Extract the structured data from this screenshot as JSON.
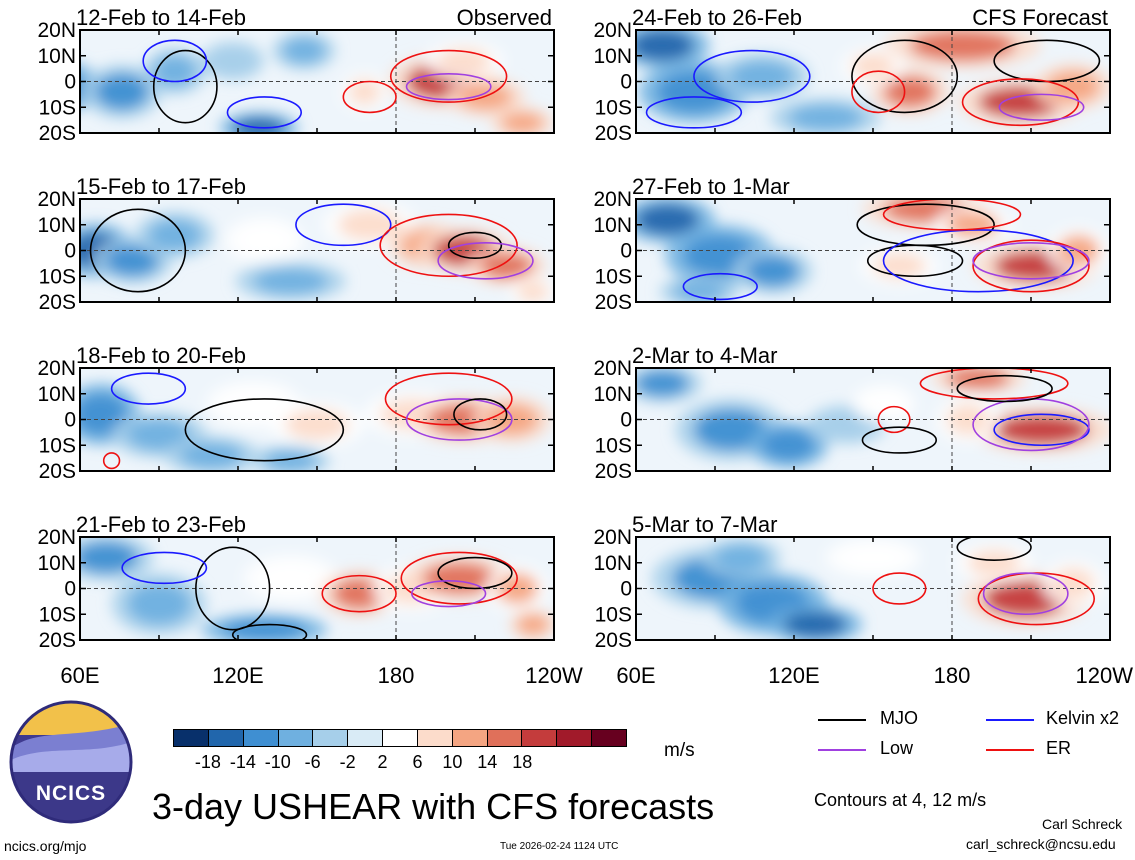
{
  "chart_data": {
    "type": "heatmap",
    "title": "3-day USHEAR with CFS forecasts",
    "variable": "USHEAR",
    "units": "m/s",
    "contour_note": "Contours at 4, 12 m/s",
    "panel_headers": {
      "observed": "Observed",
      "forecast": "CFS Forecast"
    },
    "x_ticks": [
      "60E",
      "120E",
      "180",
      "120W",
      "60E",
      "120E",
      "180",
      "120W"
    ],
    "y_ticks": [
      "20N",
      "10N",
      "0",
      "10S",
      "20S"
    ],
    "colorbar": {
      "labels": [
        "-18",
        "-14",
        "-10",
        "-6",
        "-2",
        "2",
        "6",
        "10",
        "14",
        "18"
      ],
      "colors": [
        "#08306b",
        "#2166ac",
        "#3f8fd2",
        "#6fb0e0",
        "#a6cfea",
        "#d9ebf6",
        "#ffffff",
        "#fcdccb",
        "#f4a582",
        "#e0705a",
        "#c43c3c",
        "#a11a2a",
        "#67001f"
      ]
    },
    "legend": [
      {
        "name": "MJO",
        "color": "#000000"
      },
      {
        "name": "Kelvin x2",
        "color": "#1a1aff"
      },
      {
        "name": "Low",
        "color": "#a040e0"
      },
      {
        "name": "ER",
        "color": "#ee1111"
      }
    ],
    "panels": [
      {
        "label": "12-Feb to 14-Feb",
        "source": "Observed",
        "column": 0,
        "row": 0,
        "blobs": [
          [
            50,
            -2,
            12,
            7,
            -14
          ],
          [
            76,
            -4,
            10,
            7,
            -12
          ],
          [
            96,
            4,
            8,
            6,
            -10
          ],
          [
            128,
            -18,
            10,
            4,
            -16
          ],
          [
            145,
            12,
            8,
            5,
            -8
          ],
          [
            168,
            -4,
            6,
            5,
            8
          ],
          [
            198,
            0,
            14,
            7,
            18
          ],
          [
            214,
            -6,
            10,
            5,
            12
          ],
          [
            206,
            8,
            10,
            5,
            6
          ],
          [
            228,
            -16,
            8,
            4,
            12
          ],
          [
            118,
            8,
            8,
            5,
            -6
          ]
        ],
        "contours": [
          {
            "type": "MJO",
            "lon": 100,
            "lat": -2,
            "rx": 12,
            "ry": 14
          },
          {
            "type": "Kelvin x2",
            "lon": 96,
            "lat": 8,
            "rx": 12,
            "ry": 8
          },
          {
            "type": "Kelvin x2",
            "lon": 130,
            "lat": -12,
            "rx": 14,
            "ry": 6
          },
          {
            "type": "ER",
            "lon": 200,
            "lat": 2,
            "rx": 22,
            "ry": 10
          },
          {
            "type": "ER",
            "lon": 170,
            "lat": -6,
            "rx": 10,
            "ry": 6
          },
          {
            "type": "Low",
            "lon": 200,
            "lat": -2,
            "rx": 16,
            "ry": 5
          }
        ]
      },
      {
        "label": "15-Feb to 17-Feb",
        "source": "Observed",
        "column": 0,
        "row": 1,
        "blobs": [
          [
            66,
            0,
            10,
            7,
            -16
          ],
          [
            80,
            -4,
            10,
            6,
            -12
          ],
          [
            96,
            6,
            10,
            6,
            -8
          ],
          [
            140,
            -12,
            14,
            5,
            -10
          ],
          [
            130,
            4,
            10,
            6,
            4
          ],
          [
            170,
            10,
            12,
            6,
            6
          ],
          [
            192,
            2,
            10,
            6,
            12
          ],
          [
            206,
            0,
            12,
            6,
            18
          ],
          [
            222,
            -6,
            10,
            5,
            14
          ],
          [
            232,
            -16,
            6,
            4,
            8
          ]
        ],
        "contours": [
          {
            "type": "MJO",
            "lon": 82,
            "lat": 0,
            "rx": 18,
            "ry": 16
          },
          {
            "type": "Kelvin x2",
            "lon": 160,
            "lat": 10,
            "rx": 18,
            "ry": 8
          },
          {
            "type": "ER",
            "lon": 200,
            "lat": 2,
            "rx": 26,
            "ry": 12
          },
          {
            "type": "MJO",
            "lon": 210,
            "lat": 2,
            "rx": 10,
            "ry": 5
          },
          {
            "type": "Low",
            "lon": 214,
            "lat": -4,
            "rx": 18,
            "ry": 7
          }
        ]
      },
      {
        "label": "18-Feb to 20-Feb",
        "source": "Observed",
        "column": 0,
        "row": 2,
        "blobs": [
          [
            68,
            2,
            10,
            8,
            -14
          ],
          [
            90,
            -6,
            12,
            6,
            -10
          ],
          [
            110,
            -14,
            12,
            5,
            -8
          ],
          [
            126,
            6,
            12,
            6,
            4
          ],
          [
            150,
            -2,
            12,
            6,
            6
          ],
          [
            186,
            2,
            12,
            6,
            8
          ],
          [
            206,
            0,
            14,
            6,
            16
          ],
          [
            224,
            0,
            10,
            6,
            12
          ],
          [
            140,
            -16,
            10,
            4,
            -10
          ]
        ],
        "contours": [
          {
            "type": "MJO",
            "lon": 130,
            "lat": -4,
            "rx": 30,
            "ry": 12
          },
          {
            "type": "Kelvin x2",
            "lon": 86,
            "lat": 12,
            "rx": 14,
            "ry": 6
          },
          {
            "type": "ER",
            "lon": 200,
            "lat": 8,
            "rx": 24,
            "ry": 10
          },
          {
            "type": "Low",
            "lon": 204,
            "lat": 0,
            "rx": 20,
            "ry": 8
          },
          {
            "type": "MJO",
            "lon": 212,
            "lat": 2,
            "rx": 10,
            "ry": 6
          },
          {
            "type": "ER",
            "lon": 72,
            "lat": -16,
            "rx": 3,
            "ry": 3
          }
        ]
      },
      {
        "label": "21-Feb to 23-Feb",
        "source": "Observed",
        "column": 0,
        "row": 3,
        "blobs": [
          [
            70,
            12,
            12,
            6,
            -12
          ],
          [
            90,
            -6,
            12,
            8,
            -10
          ],
          [
            130,
            -16,
            16,
            4,
            -14
          ],
          [
            140,
            4,
            12,
            6,
            4
          ],
          [
            166,
            -2,
            10,
            6,
            14
          ],
          [
            186,
            0,
            10,
            6,
            6
          ],
          [
            204,
            4,
            14,
            6,
            16
          ],
          [
            226,
            0,
            8,
            6,
            10
          ],
          [
            232,
            -14,
            6,
            4,
            12
          ]
        ],
        "contours": [
          {
            "type": "MJO",
            "lon": 118,
            "lat": 0,
            "rx": 14,
            "ry": 16
          },
          {
            "type": "Kelvin x2",
            "lon": 92,
            "lat": 8,
            "rx": 16,
            "ry": 6
          },
          {
            "type": "ER",
            "lon": 166,
            "lat": -2,
            "rx": 14,
            "ry": 7
          },
          {
            "type": "ER",
            "lon": 204,
            "lat": 4,
            "rx": 22,
            "ry": 10
          },
          {
            "type": "MJO",
            "lon": 210,
            "lat": 6,
            "rx": 14,
            "ry": 6
          },
          {
            "type": "Low",
            "lon": 200,
            "lat": -2,
            "rx": 14,
            "ry": 5
          },
          {
            "type": "MJO",
            "lon": 132,
            "lat": -18,
            "rx": 14,
            "ry": 4
          }
        ]
      },
      {
        "label": "24-Feb to 26-Feb",
        "source": "CFS Forecast",
        "column": 1,
        "row": 0,
        "blobs": [
          [
            70,
            14,
            12,
            6,
            -18
          ],
          [
            82,
            -4,
            14,
            8,
            -14
          ],
          [
            108,
            2,
            12,
            6,
            -8
          ],
          [
            132,
            -14,
            14,
            5,
            -10
          ],
          [
            184,
            14,
            20,
            6,
            16
          ],
          [
            164,
            -4,
            10,
            6,
            14
          ],
          [
            206,
            -8,
            16,
            6,
            18
          ],
          [
            226,
            -2,
            10,
            6,
            12
          ],
          [
            150,
            6,
            8,
            5,
            6
          ]
        ],
        "contours": [
          {
            "type": "MJO",
            "lon": 162,
            "lat": 2,
            "rx": 20,
            "ry": 14
          },
          {
            "type": "MJO",
            "lon": 216,
            "lat": 8,
            "rx": 20,
            "ry": 8
          },
          {
            "type": "Kelvin x2",
            "lon": 104,
            "lat": 2,
            "rx": 22,
            "ry": 10
          },
          {
            "type": "Kelvin x2",
            "lon": 82,
            "lat": -12,
            "rx": 18,
            "ry": 6
          },
          {
            "type": "ER",
            "lon": 152,
            "lat": -4,
            "rx": 10,
            "ry": 8
          },
          {
            "type": "ER",
            "lon": 206,
            "lat": -8,
            "rx": 22,
            "ry": 9
          },
          {
            "type": "Low",
            "lon": 214,
            "lat": -10,
            "rx": 16,
            "ry": 5
          }
        ]
      },
      {
        "label": "27-Feb to 1-Mar",
        "source": "CFS Forecast",
        "column": 1,
        "row": 1,
        "blobs": [
          [
            72,
            12,
            12,
            6,
            -16
          ],
          [
            92,
            -2,
            14,
            8,
            -14
          ],
          [
            112,
            -8,
            10,
            6,
            -12
          ],
          [
            170,
            16,
            16,
            5,
            16
          ],
          [
            188,
            10,
            10,
            5,
            10
          ],
          [
            212,
            -6,
            16,
            6,
            18
          ],
          [
            228,
            0,
            8,
            6,
            10
          ],
          [
            160,
            -6,
            10,
            5,
            6
          ],
          [
            84,
            -16,
            10,
            4,
            -10
          ]
        ],
        "contours": [
          {
            "type": "MJO",
            "lon": 170,
            "lat": 10,
            "rx": 26,
            "ry": 8
          },
          {
            "type": "MJO",
            "lon": 166,
            "lat": -4,
            "rx": 18,
            "ry": 6
          },
          {
            "type": "Kelvin x2",
            "lon": 190,
            "lat": -4,
            "rx": 36,
            "ry": 12
          },
          {
            "type": "Kelvin x2",
            "lon": 92,
            "lat": -14,
            "rx": 14,
            "ry": 5
          },
          {
            "type": "ER",
            "lon": 210,
            "lat": -6,
            "rx": 22,
            "ry": 10
          },
          {
            "type": "ER",
            "lon": 180,
            "lat": 14,
            "rx": 26,
            "ry": 6
          },
          {
            "type": "Low",
            "lon": 210,
            "lat": -4,
            "rx": 22,
            "ry": 7
          }
        ]
      },
      {
        "label": "2-Mar to 4-Mar",
        "source": "CFS Forecast",
        "column": 1,
        "row": 2,
        "blobs": [
          [
            70,
            14,
            10,
            5,
            -12
          ],
          [
            96,
            -4,
            14,
            8,
            -12
          ],
          [
            118,
            -10,
            10,
            6,
            -14
          ],
          [
            140,
            -2,
            10,
            5,
            -6
          ],
          [
            190,
            16,
            12,
            4,
            14
          ],
          [
            214,
            -4,
            18,
            6,
            18
          ],
          [
            186,
            0,
            8,
            6,
            6
          ],
          [
            154,
            6,
            8,
            5,
            4
          ]
        ],
        "contours": [
          {
            "type": "ER",
            "lon": 158,
            "lat": 0,
            "rx": 6,
            "ry": 5
          },
          {
            "type": "MJO",
            "lon": 160,
            "lat": -8,
            "rx": 14,
            "ry": 5
          },
          {
            "type": "Kelvin x2",
            "lon": 214,
            "lat": -4,
            "rx": 18,
            "ry": 6
          },
          {
            "type": "Low",
            "lon": 210,
            "lat": -2,
            "rx": 22,
            "ry": 10
          },
          {
            "type": "ER",
            "lon": 196,
            "lat": 14,
            "rx": 28,
            "ry": 6
          },
          {
            "type": "MJO",
            "lon": 200,
            "lat": 12,
            "rx": 18,
            "ry": 5
          }
        ]
      },
      {
        "label": "5-Mar to 7-Mar",
        "source": "CFS Forecast",
        "column": 1,
        "row": 3,
        "blobs": [
          [
            90,
            4,
            16,
            8,
            -12
          ],
          [
            112,
            -6,
            14,
            8,
            -14
          ],
          [
            128,
            -14,
            12,
            5,
            -16
          ],
          [
            100,
            12,
            10,
            5,
            -8
          ],
          [
            150,
            12,
            12,
            5,
            4
          ],
          [
            208,
            -4,
            16,
            7,
            18
          ],
          [
            226,
            2,
            8,
            6,
            8
          ],
          [
            196,
            10,
            10,
            5,
            6
          ]
        ],
        "contours": [
          {
            "type": "ER",
            "lon": 160,
            "lat": 0,
            "rx": 10,
            "ry": 6
          },
          {
            "type": "ER",
            "lon": 212,
            "lat": -4,
            "rx": 22,
            "ry": 10
          },
          {
            "type": "Low",
            "lon": 208,
            "lat": -2,
            "rx": 16,
            "ry": 8
          },
          {
            "type": "MJO",
            "lon": 196,
            "lat": 16,
            "rx": 14,
            "ry": 5
          }
        ]
      }
    ]
  },
  "branding": {
    "logo_text": "NCICS",
    "url": "ncics.org/mjo"
  },
  "footer": {
    "timestamp": "Tue 2026-02-24 1124 UTC",
    "author": "Carl Schreck",
    "email": "carl_schreck@ncsu.edu"
  }
}
